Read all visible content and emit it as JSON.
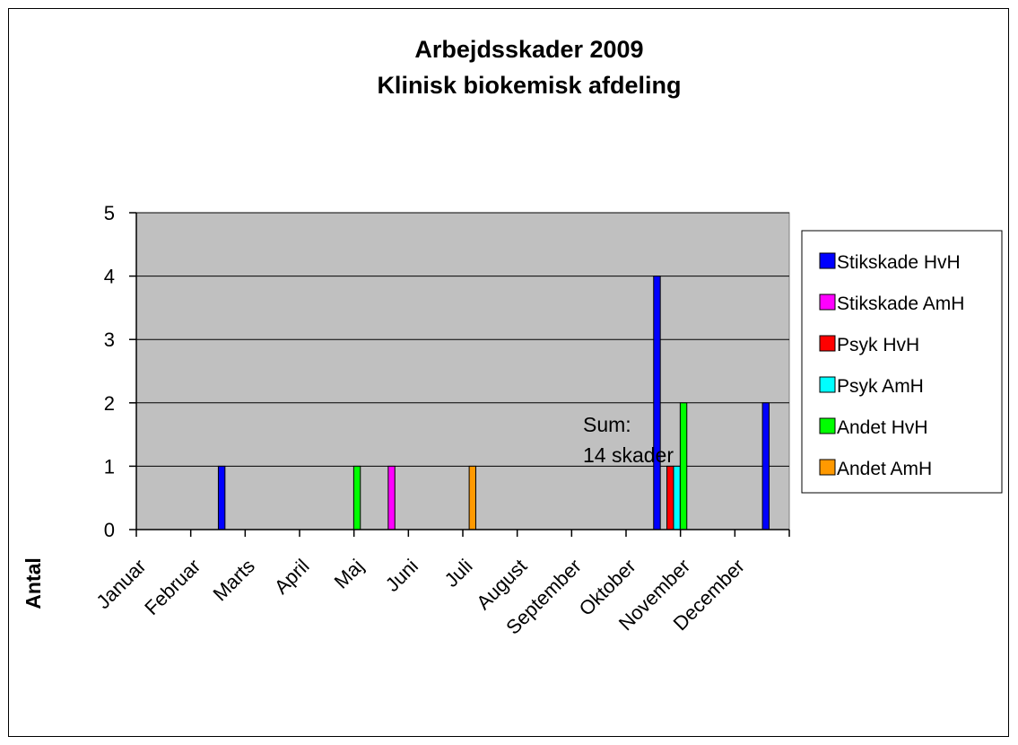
{
  "chart_data": {
    "type": "bar",
    "title": [
      "Arbejdsskader 2009",
      "Klinisk biokemisk afdeling"
    ],
    "ylabel": "Antal",
    "xlabel": "",
    "ylim": [
      0,
      5
    ],
    "yticks": [
      0,
      1,
      2,
      3,
      4,
      5
    ],
    "grid": true,
    "legend_position": "right",
    "categories": [
      "Januar",
      "Februar",
      "Marts",
      "April",
      "Maj",
      "Juni",
      "Juli",
      "August",
      "September",
      "Oktober",
      "November",
      "December"
    ],
    "series": [
      {
        "name": "Stikskade HvH",
        "color": "#0000FF",
        "values": [
          0,
          1,
          0,
          0,
          0,
          0,
          0,
          0,
          0,
          4,
          0,
          2
        ]
      },
      {
        "name": "Stikskade AmH",
        "color": "#FF00FF",
        "values": [
          0,
          0,
          0,
          0,
          1,
          0,
          0,
          0,
          0,
          0,
          0,
          0
        ]
      },
      {
        "name": "Psyk HvH",
        "color": "#FF0000",
        "values": [
          0,
          0,
          0,
          0,
          0,
          0,
          0,
          0,
          0,
          1,
          0,
          0
        ]
      },
      {
        "name": "Psyk AmH",
        "color": "#00FFFF",
        "values": [
          0,
          0,
          0,
          0,
          0,
          0,
          0,
          0,
          0,
          1,
          0,
          0
        ]
      },
      {
        "name": "Andet HvH",
        "color": "#00FF00",
        "values": [
          0,
          0,
          0,
          1,
          0,
          0,
          0,
          0,
          0,
          2,
          0,
          0
        ]
      },
      {
        "name": "Andet AmH",
        "color": "#FF9900",
        "values": [
          0,
          0,
          0,
          0,
          0,
          1,
          0,
          0,
          0,
          0,
          0,
          0
        ]
      }
    ],
    "annotation": [
      "Sum:",
      "14 skader"
    ],
    "colors": {
      "plot_background": "#C0C0C0"
    }
  }
}
